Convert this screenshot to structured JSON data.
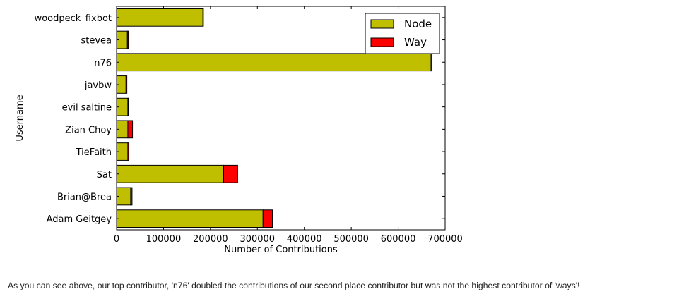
{
  "chart_data": {
    "type": "bar",
    "orientation": "horizontal",
    "stacked": true,
    "categories": [
      "Adam Geitgey",
      "Brian@Brea",
      "Sat",
      "TieFaith",
      "Zian Choy",
      "evil saltine",
      "javbw",
      "n76",
      "stevea",
      "woodpeck_fixbot"
    ],
    "series": [
      {
        "name": "Node",
        "color": "#bfbf00",
        "values": [
          312000,
          30000,
          228000,
          24000,
          24000,
          24000,
          20000,
          670000,
          23000,
          184000
        ]
      },
      {
        "name": "Way",
        "color": "#ff0000",
        "values": [
          20000,
          3000,
          30000,
          2000,
          10000,
          1000,
          2000,
          2000,
          2000,
          1000
        ]
      }
    ],
    "xlabel": "Number of Contributions",
    "ylabel": "Username",
    "xlim": [
      0,
      700000
    ],
    "xticks": [
      0,
      100000,
      200000,
      300000,
      400000,
      500000,
      600000,
      700000
    ],
    "legend_location": "top-right",
    "grid": false
  },
  "caption": "As you can see above, our top contributor, 'n76' doubled the contributions of our second place contributor but was not the highest contributor of 'ways'!"
}
